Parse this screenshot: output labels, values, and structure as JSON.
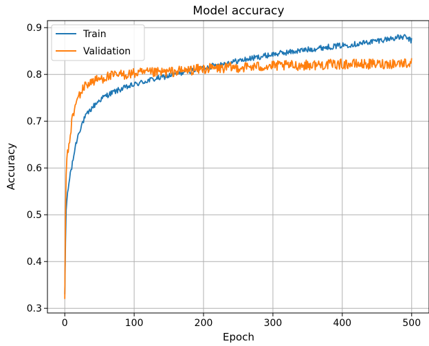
{
  "chart_data": {
    "type": "line",
    "title": "Model accuracy",
    "xlabel": "Epoch",
    "ylabel": "Accuracy",
    "xlim": [
      -25,
      525
    ],
    "ylim": [
      0.29,
      0.915
    ],
    "x_ticks": [
      0,
      100,
      200,
      300,
      400,
      500
    ],
    "y_ticks": [
      0.3,
      0.4,
      0.5,
      0.6,
      0.7,
      0.8,
      0.9
    ],
    "grid": true,
    "legend": {
      "placement": "top-left"
    },
    "series": [
      {
        "name": "Train",
        "color": "#1f77b4",
        "points": [
          [
            0,
            0.33
          ],
          [
            1,
            0.44
          ],
          [
            2,
            0.51
          ],
          [
            3,
            0.53
          ],
          [
            5,
            0.555
          ],
          [
            8,
            0.59
          ],
          [
            10,
            0.6
          ],
          [
            15,
            0.645
          ],
          [
            20,
            0.675
          ],
          [
            25,
            0.695
          ],
          [
            30,
            0.71
          ],
          [
            40,
            0.73
          ],
          [
            50,
            0.745
          ],
          [
            60,
            0.755
          ],
          [
            70,
            0.762
          ],
          [
            80,
            0.768
          ],
          [
            100,
            0.778
          ],
          [
            120,
            0.787
          ],
          [
            150,
            0.797
          ],
          [
            175,
            0.806
          ],
          [
            200,
            0.814
          ],
          [
            225,
            0.822
          ],
          [
            250,
            0.829
          ],
          [
            275,
            0.836
          ],
          [
            300,
            0.843
          ],
          [
            325,
            0.848
          ],
          [
            350,
            0.853
          ],
          [
            375,
            0.858
          ],
          [
            400,
            0.862
          ],
          [
            425,
            0.866
          ],
          [
            450,
            0.872
          ],
          [
            475,
            0.878
          ],
          [
            490,
            0.88
          ],
          [
            500,
            0.872
          ]
        ]
      },
      {
        "name": "Validation",
        "color": "#ff7f0e",
        "points": [
          [
            0,
            0.32
          ],
          [
            1,
            0.5
          ],
          [
            2,
            0.585
          ],
          [
            3,
            0.62
          ],
          [
            5,
            0.64
          ],
          [
            8,
            0.67
          ],
          [
            10,
            0.7
          ],
          [
            15,
            0.73
          ],
          [
            20,
            0.755
          ],
          [
            25,
            0.765
          ],
          [
            30,
            0.778
          ],
          [
            40,
            0.785
          ],
          [
            50,
            0.79
          ],
          [
            60,
            0.795
          ],
          [
            70,
            0.797
          ],
          [
            80,
            0.799
          ],
          [
            100,
            0.802
          ],
          [
            150,
            0.805
          ],
          [
            200,
            0.812
          ],
          [
            250,
            0.815
          ],
          [
            300,
            0.818
          ],
          [
            350,
            0.82
          ],
          [
            400,
            0.822
          ],
          [
            450,
            0.822
          ],
          [
            500,
            0.825
          ]
        ]
      }
    ]
  }
}
